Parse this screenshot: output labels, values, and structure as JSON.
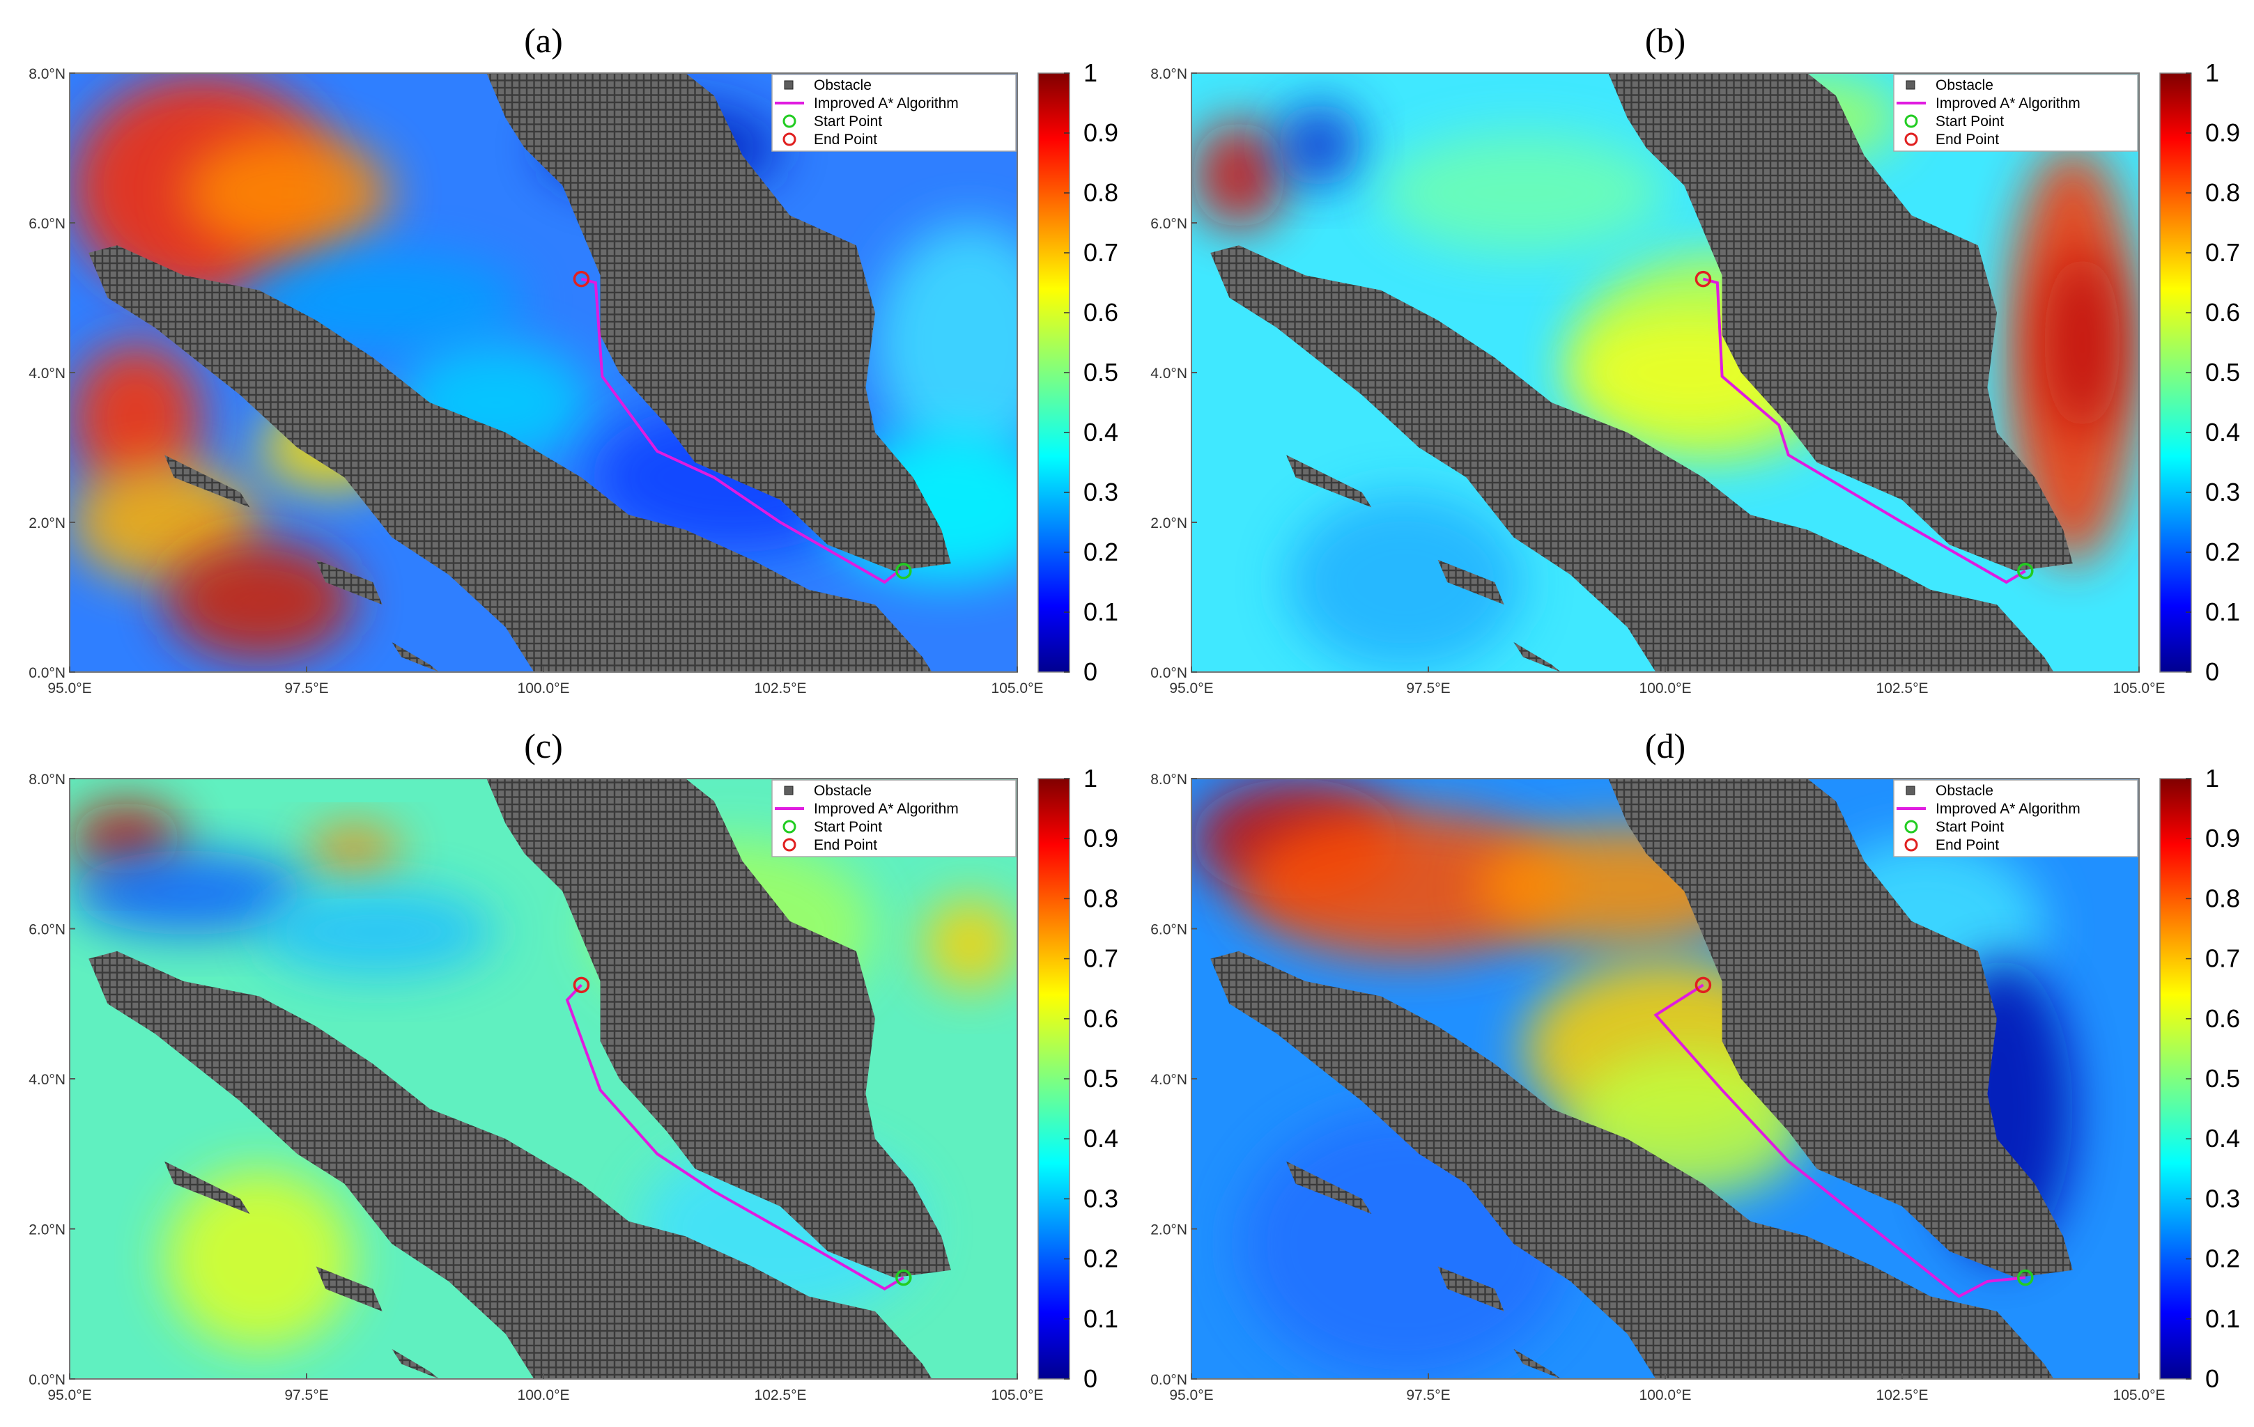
{
  "figure": {
    "panel_titles": [
      "(a)",
      "(b)",
      "(c)",
      "(d)"
    ],
    "legend": [
      "Obstacle",
      "Improved A* Algorithm",
      "Start Point",
      "End Point"
    ],
    "legend_colors": {
      "obstacle": "#5e5e5e",
      "path": "#e01be0",
      "start": "#22cc22",
      "end": "#e02020"
    },
    "colormap": "jet"
  },
  "chart_data": [
    {
      "type": "heatmap",
      "title": "(a)",
      "xlabel": "",
      "ylabel": "",
      "xlim": [
        95.0,
        105.0
      ],
      "ylim": [
        0.0,
        8.0
      ],
      "xticks": [
        "95.0°E",
        "97.5°E",
        "100.0°E",
        "102.5°E",
        "105.0°E"
      ],
      "yticks": [
        "0.0°N",
        "2.0°N",
        "4.0°N",
        "6.0°N",
        "8.0°N"
      ],
      "colorbar": {
        "range": [
          0,
          1
        ],
        "ticks": [
          "0",
          "0.1",
          "0.2",
          "0.3",
          "0.4",
          "0.5",
          "0.6",
          "0.7",
          "0.8",
          "0.9",
          "1"
        ]
      },
      "legend_placement": "top-right",
      "series": [
        {
          "name": "Improved A* Algorithm",
          "x": [
            100.4,
            100.55,
            100.62,
            101.2,
            101.8,
            102.5,
            103.6,
            103.75
          ],
          "y": [
            5.25,
            5.2,
            3.95,
            2.95,
            2.6,
            2.0,
            1.2,
            1.35
          ]
        },
        {
          "name": "Start Point",
          "x": [
            103.8
          ],
          "y": [
            1.35
          ]
        },
        {
          "name": "End Point",
          "x": [
            100.4
          ],
          "y": [
            5.25
          ]
        }
      ]
    },
    {
      "type": "heatmap",
      "title": "(b)",
      "xlabel": "",
      "ylabel": "",
      "xlim": [
        95.0,
        105.0
      ],
      "ylim": [
        0.0,
        8.0
      ],
      "xticks": [
        "95.0°E",
        "97.5°E",
        "100.0°E",
        "102.5°E",
        "105.0°E"
      ],
      "yticks": [
        "0.0°N",
        "2.0°N",
        "4.0°N",
        "6.0°N",
        "8.0°N"
      ],
      "colorbar": {
        "range": [
          0,
          1
        ],
        "ticks": [
          "0",
          "0.1",
          "0.2",
          "0.3",
          "0.4",
          "0.5",
          "0.6",
          "0.7",
          "0.8",
          "0.9",
          "1"
        ]
      },
      "legend_placement": "top-right",
      "series": [
        {
          "name": "Improved A* Algorithm",
          "x": [
            100.4,
            100.55,
            100.6,
            101.2,
            101.3,
            102.5,
            103.6,
            103.8
          ],
          "y": [
            5.25,
            5.2,
            3.95,
            3.3,
            2.9,
            2.0,
            1.2,
            1.35
          ]
        },
        {
          "name": "Start Point",
          "x": [
            103.8
          ],
          "y": [
            1.35
          ]
        },
        {
          "name": "End Point",
          "x": [
            100.4
          ],
          "y": [
            5.25
          ]
        }
      ]
    },
    {
      "type": "heatmap",
      "title": "(c)",
      "xlabel": "",
      "ylabel": "",
      "xlim": [
        95.0,
        105.0
      ],
      "ylim": [
        0.0,
        8.0
      ],
      "xticks": [
        "95.0°E",
        "97.5°E",
        "100.0°E",
        "102.5°E",
        "105.0°E"
      ],
      "yticks": [
        "0.0°N",
        "2.0°N",
        "4.0°N",
        "6.0°N",
        "8.0°N"
      ],
      "colorbar": {
        "range": [
          0,
          1
        ],
        "ticks": [
          "0",
          "0.1",
          "0.2",
          "0.3",
          "0.4",
          "0.5",
          "0.6",
          "0.7",
          "0.8",
          "0.9",
          "1"
        ]
      },
      "legend_placement": "top-right",
      "series": [
        {
          "name": "Improved A* Algorithm",
          "x": [
            100.4,
            100.25,
            100.6,
            101.2,
            101.8,
            102.5,
            103.6,
            103.8
          ],
          "y": [
            5.25,
            5.05,
            3.85,
            3.0,
            2.5,
            2.0,
            1.2,
            1.35
          ]
        },
        {
          "name": "Start Point",
          "x": [
            103.8
          ],
          "y": [
            1.35
          ]
        },
        {
          "name": "End Point",
          "x": [
            100.4
          ],
          "y": [
            5.25
          ]
        }
      ]
    },
    {
      "type": "heatmap",
      "title": "(d)",
      "xlabel": "",
      "ylabel": "",
      "xlim": [
        95.0,
        105.0
      ],
      "ylim": [
        0.0,
        8.0
      ],
      "xticks": [
        "95.0°E",
        "97.5°E",
        "100.0°E",
        "102.5°E",
        "105.0°E"
      ],
      "yticks": [
        "0.0°N",
        "2.0°N",
        "4.0°N",
        "6.0°N",
        "8.0°N"
      ],
      "colorbar": {
        "range": [
          0,
          1
        ],
        "ticks": [
          "0",
          "0.1",
          "0.2",
          "0.3",
          "0.4",
          "0.5",
          "0.6",
          "0.7",
          "0.8",
          "0.9",
          "1"
        ]
      },
      "legend_placement": "top-right",
      "series": [
        {
          "name": "Improved A* Algorithm",
          "x": [
            100.4,
            99.9,
            100.6,
            101.3,
            102.2,
            103.1,
            103.4,
            103.8
          ],
          "y": [
            5.25,
            4.85,
            3.85,
            2.9,
            2.0,
            1.1,
            1.3,
            1.35
          ]
        },
        {
          "name": "Start Point",
          "x": [
            103.8
          ],
          "y": [
            1.35
          ]
        },
        {
          "name": "End Point",
          "x": [
            100.4
          ],
          "y": [
            5.25
          ]
        }
      ]
    }
  ]
}
